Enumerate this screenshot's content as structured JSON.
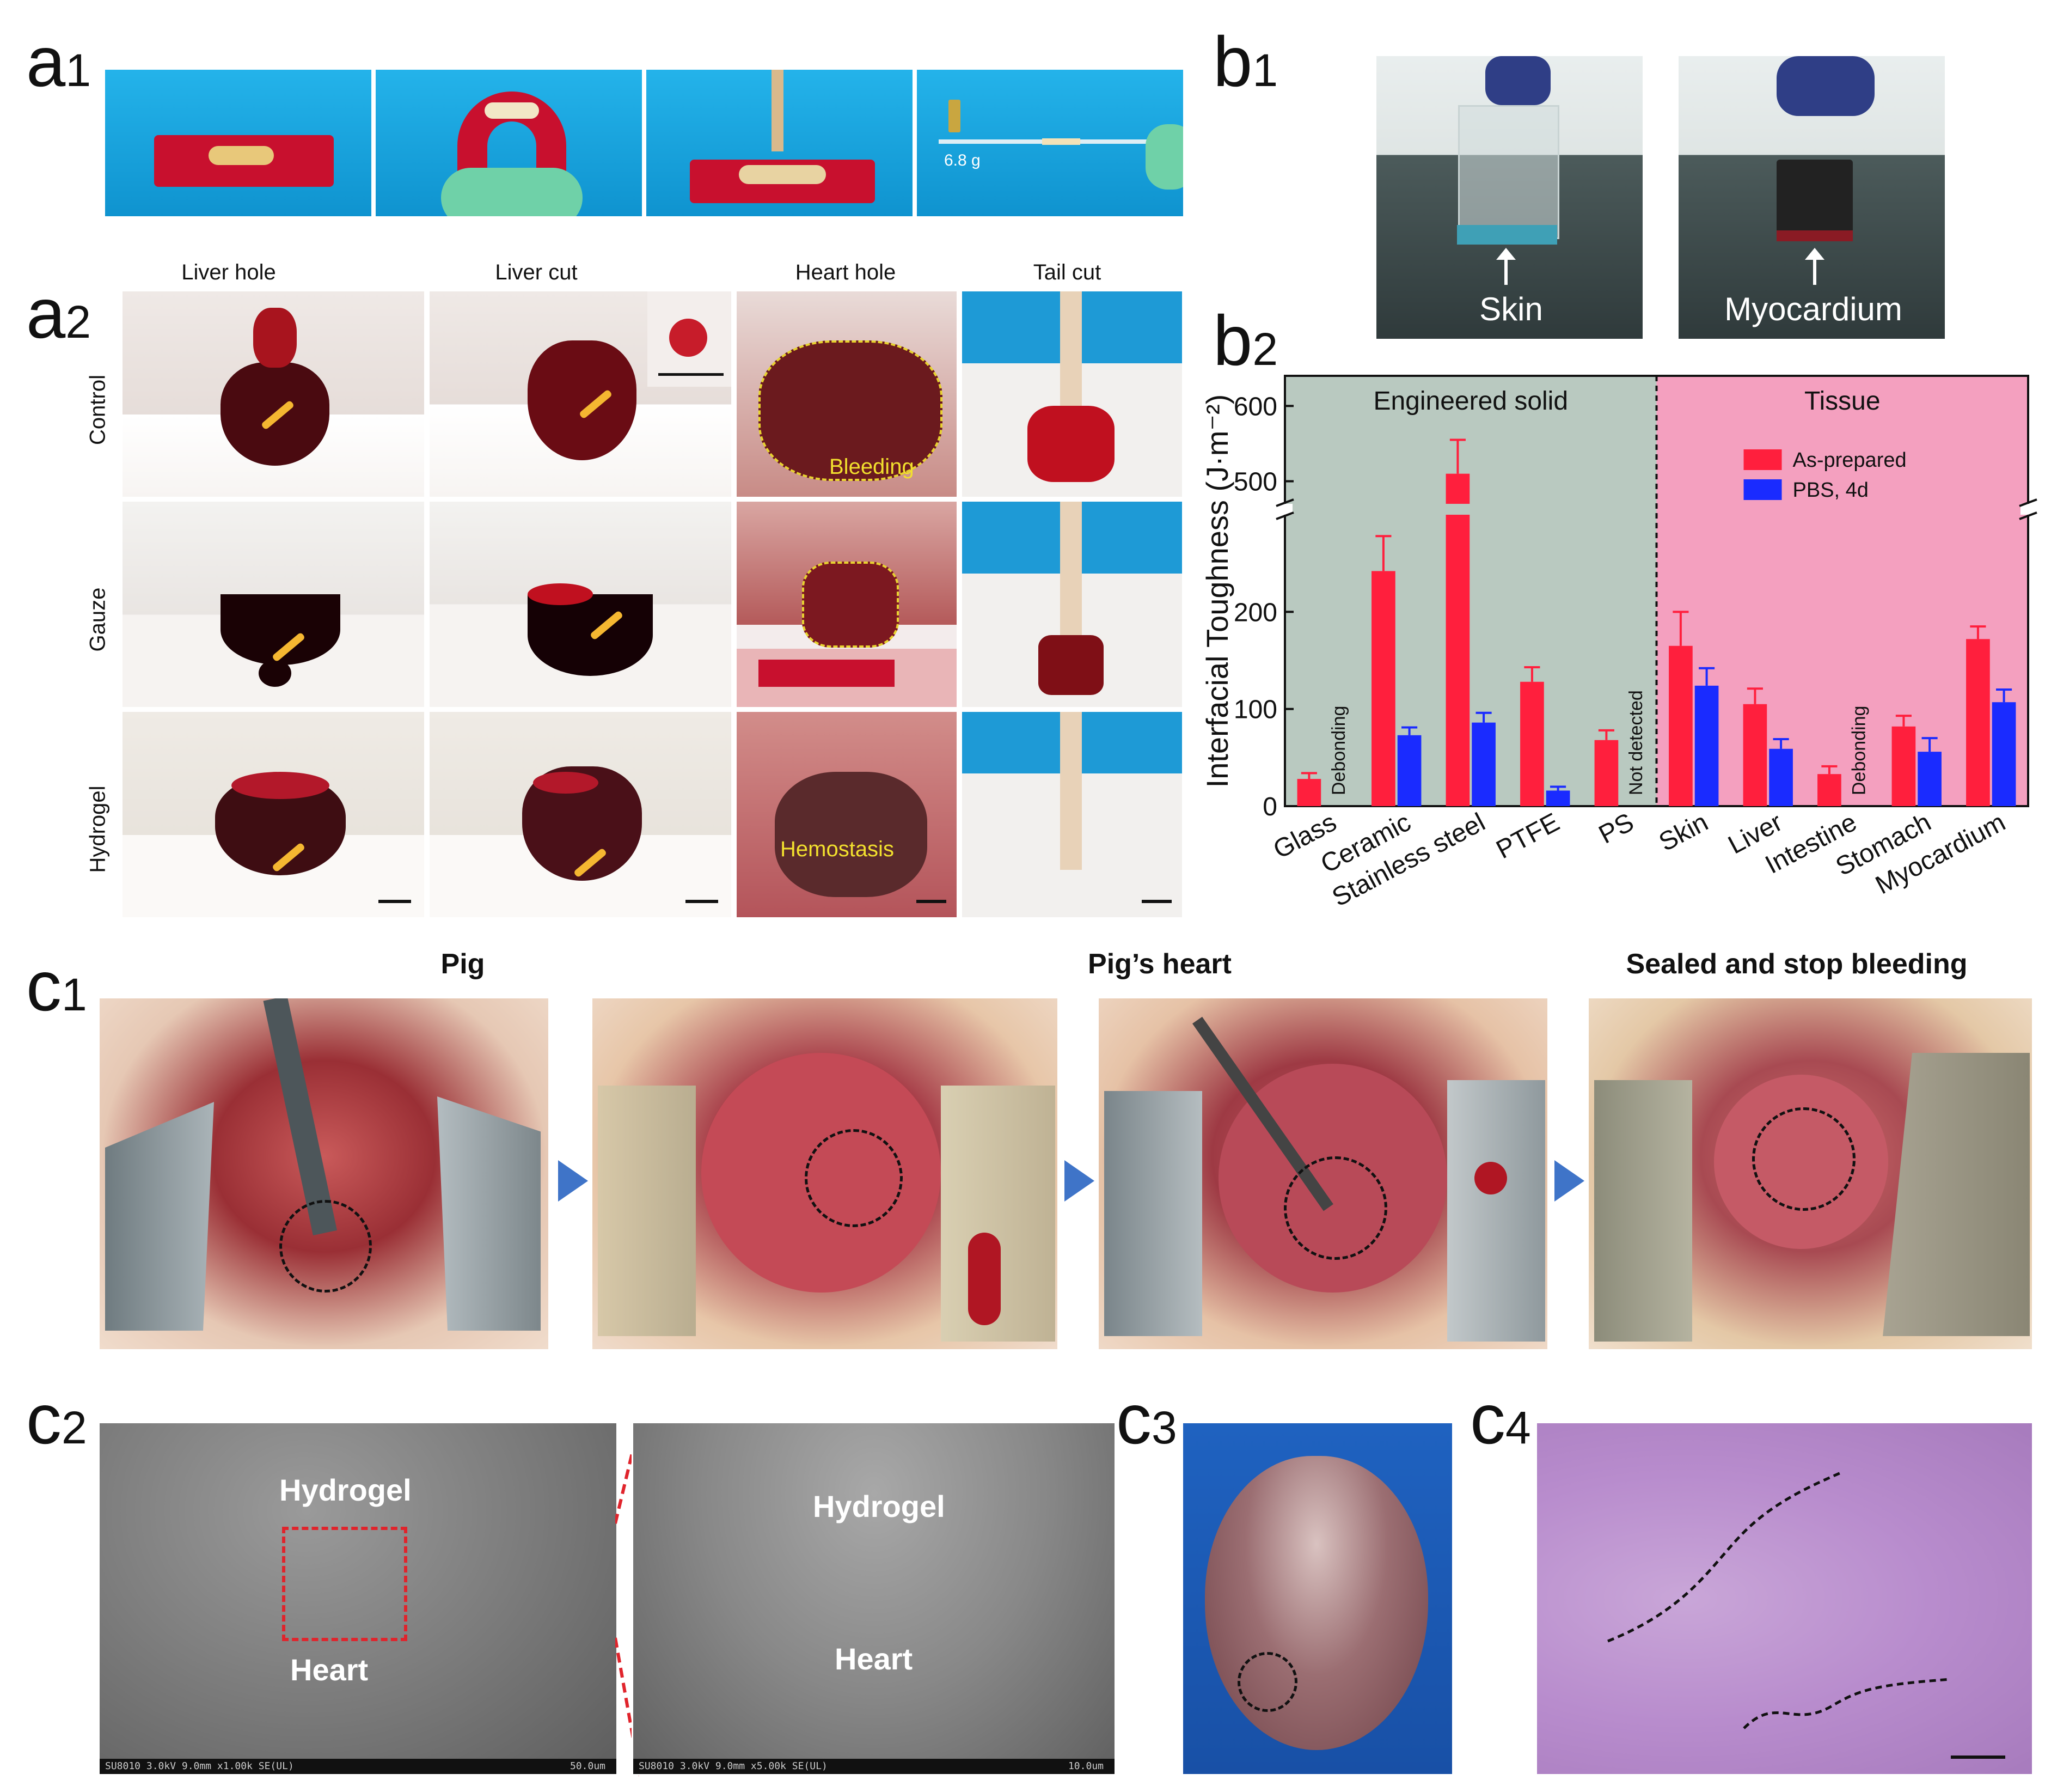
{
  "panel_labels": {
    "a1": {
      "main": "a",
      "sub": "1"
    },
    "a2": {
      "main": "a",
      "sub": "2"
    },
    "b1": {
      "main": "b",
      "sub": "1"
    },
    "b2": {
      "main": "b",
      "sub": "2"
    },
    "c1": {
      "main": "c",
      "sub": "1"
    },
    "c2": {
      "main": "c",
      "sub": "2"
    },
    "c3": {
      "main": "c",
      "sub": "3"
    },
    "c4": {
      "main": "c",
      "sub": "4"
    }
  },
  "a1": {
    "weight_label": "6.8 g"
  },
  "a2": {
    "columns": [
      "Liver hole",
      "Liver cut",
      "Heart hole",
      "Tail cut"
    ],
    "rows": [
      "Control",
      "Gauze",
      "Hydrogel"
    ],
    "overlay_bleeding": "Bleeding",
    "overlay_hemostasis": "Hemostasis"
  },
  "b1": {
    "left_label": "Skin",
    "right_label": "Myocardium"
  },
  "c1": {
    "titles": [
      "Pig",
      "Pig’s heart",
      "Sealed and stop bleeding"
    ]
  },
  "c2": {
    "left_top": "Hydrogel",
    "left_bottom": "Heart",
    "right_top": "Hydrogel",
    "right_bottom": "Heart",
    "left_footer": "SU8010 3.0kV 9.0mm x1.00k SE(UL)",
    "left_scale": "50.0um",
    "right_footer": "SU8010 3.0kV 9.0mm x5.00k SE(UL)",
    "right_scale": "10.0um"
  },
  "colors": {
    "engineered_bg": "#b9c9c0",
    "tissue_bg": "#f4a0bf",
    "as_prepared": "#ff1f3d",
    "pbs": "#1a2bff",
    "photo_blue": "#1aa6e0"
  },
  "chart_data": {
    "type": "bar",
    "ylabel": "Interfacial Toughness (J·m⁻²)",
    "region_labels": [
      "Engineered solid",
      "Tissue"
    ],
    "legend": [
      "As-prepared",
      "PBS, 4d"
    ],
    "categories": [
      "Glass",
      "Ceramic",
      "Stainless steel",
      "PTFE",
      "PS",
      "Skin",
      "Liver",
      "Intestine",
      "Stomach",
      "Myocardium"
    ],
    "series": [
      {
        "name": "As-prepared",
        "values": [
          28,
          242,
          510,
          128,
          68,
          165,
          105,
          33,
          82,
          172
        ],
        "errors": [
          6,
          36,
          45,
          15,
          10,
          35,
          16,
          8,
          11,
          13
        ]
      },
      {
        "name": "PBS, 4d",
        "values": [
          null,
          73,
          86,
          16,
          null,
          124,
          59,
          null,
          56,
          107
        ],
        "errors": [
          null,
          8,
          10,
          4,
          null,
          18,
          10,
          null,
          14,
          13
        ]
      }
    ],
    "annotations": {
      "Glass": "Debonding",
      "PS": "Not detected",
      "Intestine": "Debonding"
    },
    "y_ticks_lower": [
      0,
      100,
      200
    ],
    "y_ticks_upper": [
      500,
      600
    ],
    "ylim_lower": [
      0,
      300
    ],
    "ylim_upper": [
      470,
      640
    ]
  }
}
